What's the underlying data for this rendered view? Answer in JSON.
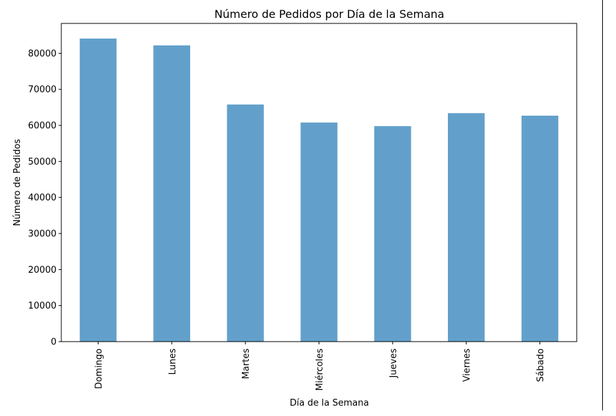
{
  "chart_data": {
    "type": "bar",
    "title": "Número de Pedidos por Día de la Semana",
    "xlabel": "Día de la Semana",
    "ylabel": "Número de Pedidos",
    "categories": [
      "Domingo",
      "Lunes",
      "Martes",
      "Miércoles",
      "Jueves",
      "Viernes",
      "Sábado"
    ],
    "values": [
      84100,
      82200,
      65800,
      60800,
      59800,
      63400,
      62700
    ],
    "ylim": [
      0,
      88300
    ],
    "yticks": [
      0,
      10000,
      20000,
      30000,
      40000,
      50000,
      60000,
      70000,
      80000
    ],
    "yticklabels": [
      "0",
      "10000",
      "20000",
      "30000",
      "40000",
      "50000",
      "60000",
      "70000",
      "80000"
    ],
    "bar_color": "#62a0cb",
    "grid": false,
    "legend": "none"
  }
}
